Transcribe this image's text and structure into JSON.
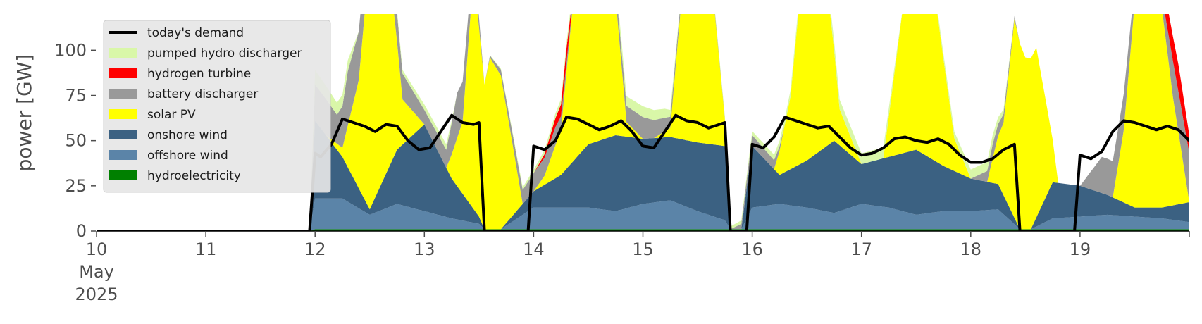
{
  "chart_data": {
    "type": "area",
    "stacked": true,
    "ylabel": "power [GW]",
    "ylim": [
      0,
      120
    ],
    "yticks": [
      0,
      25,
      50,
      75,
      100
    ],
    "xlim": [
      10,
      20
    ],
    "xticks": [
      10,
      11,
      12,
      13,
      14,
      15,
      16,
      17,
      18,
      19
    ],
    "xtick_labels": [
      "10\nMay\n2025",
      "11",
      "12",
      "13",
      "14",
      "15",
      "16",
      "17",
      "18",
      "19"
    ],
    "grid": false,
    "legend_position": "upper-left",
    "area_series": [
      {
        "name": "hydroelectricity",
        "color": "#008000",
        "x": [
          10,
          11.95,
          12,
          14,
          16,
          18,
          20
        ],
        "values": [
          0,
          0,
          1,
          1,
          1,
          1,
          1
        ]
      },
      {
        "name": "offshore wind",
        "color": "#5b84a8",
        "x": [
          10,
          11.95,
          12.0,
          12.25,
          12.5,
          12.75,
          13.0,
          13.25,
          13.5,
          13.55,
          13.7,
          14.0,
          14.25,
          14.5,
          14.75,
          15.0,
          15.25,
          15.5,
          15.75,
          15.8,
          15.9,
          16.0,
          16.25,
          16.5,
          16.75,
          17.0,
          17.25,
          17.5,
          17.75,
          18.0,
          18.25,
          18.45,
          18.55,
          18.75,
          19.0,
          19.25,
          19.5,
          19.75,
          20.0
        ],
        "values": [
          0,
          0,
          17,
          17,
          8,
          14,
          10,
          6,
          3,
          0,
          0,
          12,
          12,
          12,
          10,
          14,
          16,
          10,
          5,
          0,
          0,
          12,
          14,
          12,
          9,
          14,
          12,
          8,
          10,
          10,
          11,
          0,
          0,
          6,
          7,
          8,
          7,
          6,
          4
        ]
      },
      {
        "name": "onshore wind",
        "color": "#3b6182",
        "x": [
          10,
          11.95,
          12.0,
          12.25,
          12.5,
          12.75,
          13.0,
          13.25,
          13.5,
          13.55,
          13.7,
          14.0,
          14.25,
          14.5,
          14.75,
          15.0,
          15.25,
          15.5,
          15.75,
          15.8,
          15.9,
          16.0,
          16.25,
          16.5,
          16.75,
          17.0,
          17.25,
          17.5,
          17.75,
          18.0,
          18.25,
          18.45,
          18.55,
          18.75,
          19.0,
          19.25,
          19.5,
          19.75,
          20.0
        ],
        "values": [
          0,
          0,
          43,
          23,
          3,
          30,
          48,
          22,
          4,
          0,
          0,
          9,
          18,
          35,
          42,
          36,
          35,
          38,
          41,
          0,
          0,
          34,
          16,
          26,
          40,
          22,
          28,
          36,
          25,
          18,
          14,
          0,
          0,
          20,
          17,
          11,
          5,
          6,
          11
        ]
      },
      {
        "name": "solar PV",
        "color": "#ffff00",
        "x": [
          10,
          11.95,
          12.0,
          12.1,
          12.25,
          12.4,
          12.5,
          12.65,
          12.8,
          13.0,
          13.2,
          13.35,
          13.45,
          13.55,
          13.6,
          13.7,
          13.9,
          14.0,
          14.1,
          14.25,
          14.4,
          14.55,
          14.7,
          14.85,
          15.0,
          15.1,
          15.25,
          15.4,
          15.55,
          15.75,
          15.8,
          15.9,
          16.0,
          16.2,
          16.35,
          16.5,
          16.65,
          16.8,
          17.0,
          17.2,
          17.4,
          17.55,
          17.7,
          17.85,
          18.0,
          18.15,
          18.3,
          18.4,
          18.5,
          18.6,
          18.8,
          19.0,
          19.15,
          19.3,
          19.4,
          19.55,
          19.7,
          19.85,
          20.0
        ],
        "values": [
          0,
          0,
          0,
          0,
          5,
          60,
          140,
          130,
          25,
          0,
          0,
          40,
          130,
          80,
          95,
          85,
          0,
          0,
          5,
          25,
          110,
          130,
          110,
          8,
          0,
          0,
          5,
          110,
          140,
          15,
          0,
          0,
          0,
          0,
          40,
          130,
          110,
          20,
          0,
          0,
          90,
          130,
          80,
          18,
          0,
          0,
          40,
          110,
          95,
          94,
          0,
          0,
          0,
          0,
          40,
          150,
          135,
          60,
          0
        ]
      },
      {
        "name": "battery discharger",
        "color": "#999999",
        "x": [
          10,
          11.95,
          12.0,
          12.1,
          12.2,
          12.3,
          13.0,
          13.2,
          13.3,
          13.35,
          13.55,
          14.0,
          14.2,
          14.4,
          15.0,
          15.1,
          15.3,
          15.8,
          16.0,
          16.2,
          16.3,
          17.0,
          17.4,
          18.0,
          18.2,
          18.3,
          18.45,
          19.0,
          19.2,
          19.4,
          19.5,
          19.7,
          19.85,
          20.0
        ],
        "values": [
          0,
          0,
          20,
          20,
          16,
          30,
          8,
          10,
          25,
          22,
          0,
          10,
          10,
          0,
          12,
          10,
          5,
          0,
          6,
          5,
          0,
          0,
          0,
          0,
          8,
          5,
          0,
          0,
          20,
          20,
          10,
          0,
          20,
          27
        ]
      },
      {
        "name": "hydrogen turbine",
        "color": "#ff0000",
        "x": [
          10,
          13.95,
          14.0,
          14.1,
          14.2,
          14.3,
          14.4,
          19.7,
          19.8,
          19.9,
          20.0
        ],
        "values": [
          0,
          0,
          0,
          2,
          5,
          8,
          0,
          0,
          12,
          15,
          10
        ]
      },
      {
        "name": "pumped hydro discharger",
        "color": "#d9f7a8",
        "x": [
          10,
          11.95,
          12.0,
          12.3,
          12.4,
          13.0,
          13.2,
          13.3,
          13.55,
          15.0,
          15.2,
          15.4,
          17.0,
          17.2,
          17.4,
          18.0,
          18.2,
          18.4,
          20.0
        ],
        "values": [
          0,
          0,
          8,
          6,
          0,
          3,
          3,
          0,
          0,
          6,
          5,
          0,
          6,
          6,
          0,
          5,
          5,
          0,
          0
        ]
      }
    ],
    "series": [
      {
        "name": "today's demand",
        "color": "#000000",
        "x": [
          10,
          11.95,
          12.0,
          12.05,
          12.15,
          12.25,
          12.35,
          12.45,
          12.55,
          12.65,
          12.75,
          12.85,
          12.95,
          13.05,
          13.15,
          13.25,
          13.35,
          13.45,
          13.5,
          13.55,
          13.95,
          14.0,
          14.1,
          14.2,
          14.3,
          14.4,
          14.5,
          14.6,
          14.7,
          14.8,
          14.9,
          15.0,
          15.1,
          15.2,
          15.3,
          15.4,
          15.5,
          15.6,
          15.7,
          15.75,
          15.8,
          15.95,
          16.0,
          16.1,
          16.2,
          16.3,
          16.4,
          16.5,
          16.6,
          16.7,
          16.8,
          16.9,
          17.0,
          17.1,
          17.2,
          17.3,
          17.4,
          17.5,
          17.6,
          17.7,
          17.8,
          17.9,
          18.0,
          18.1,
          18.2,
          18.3,
          18.4,
          18.45,
          18.95,
          19.0,
          19.1,
          19.2,
          19.3,
          19.4,
          19.5,
          19.6,
          19.7,
          19.8,
          19.9,
          20.0
        ],
        "values": [
          0,
          0,
          43,
          41,
          48,
          62,
          60,
          58,
          55,
          59,
          58,
          50,
          45,
          46,
          55,
          64,
          60,
          59,
          60,
          0,
          0,
          47,
          45,
          50,
          63,
          62,
          59,
          56,
          58,
          61,
          55,
          47,
          46,
          55,
          64,
          61,
          60,
          57,
          59,
          60,
          0,
          0,
          48,
          46,
          52,
          63,
          61,
          59,
          57,
          58,
          52,
          46,
          42,
          43,
          46,
          51,
          52,
          50,
          49,
          51,
          48,
          42,
          38,
          38,
          40,
          45,
          48,
          0,
          0,
          42,
          40,
          44,
          55,
          61,
          60,
          58,
          56,
          58,
          56,
          50
        ]
      }
    ]
  }
}
